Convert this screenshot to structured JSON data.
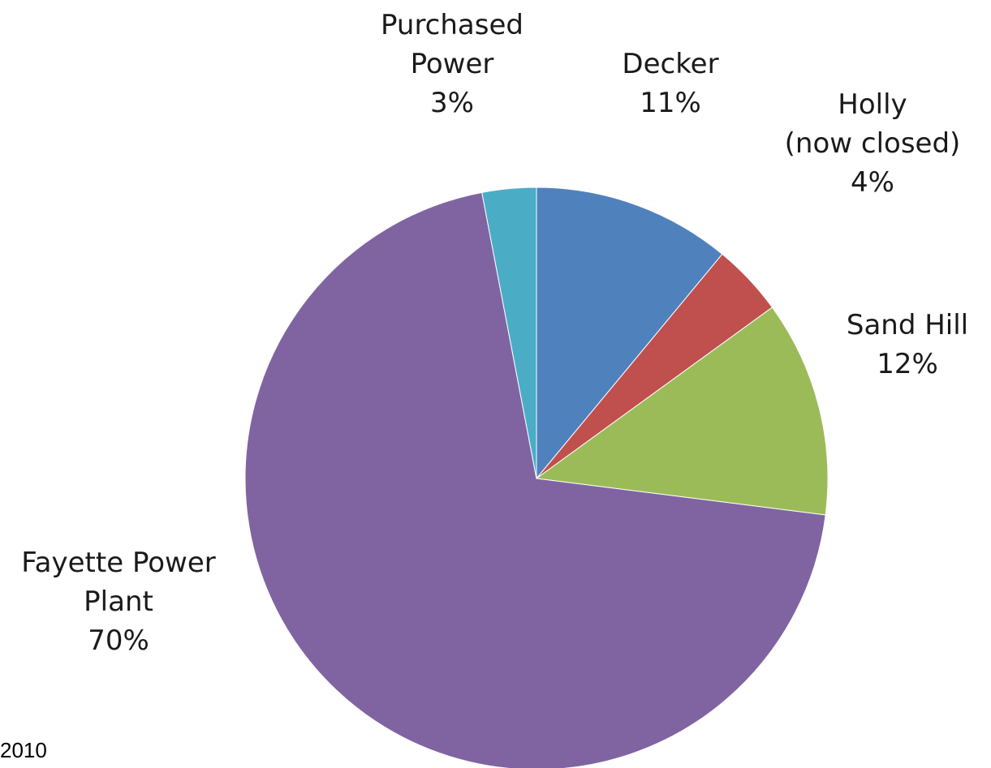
{
  "chart_data": {
    "type": "pie",
    "start_angle_deg": 0,
    "direction": "clockwise",
    "slices": [
      {
        "label_lines": [
          "Decker"
        ],
        "value": 11,
        "value_label": "11%",
        "color": "#4f81bd"
      },
      {
        "label_lines": [
          "Holly",
          "(now closed)"
        ],
        "value": 4,
        "value_label": "4%",
        "color": "#c0504d"
      },
      {
        "label_lines": [
          "Sand Hill"
        ],
        "value": 12,
        "value_label": "12%",
        "color": "#9bbb59"
      },
      {
        "label_lines": [
          "Fayette Power",
          "Plant"
        ],
        "value": 70,
        "value_label": "70%",
        "color": "#8064a2"
      },
      {
        "label_lines": [
          "Purchased",
          "Power"
        ],
        "value": 3,
        "value_label": "3%",
        "color": "#4bacc6"
      }
    ]
  },
  "footnote": "2010"
}
